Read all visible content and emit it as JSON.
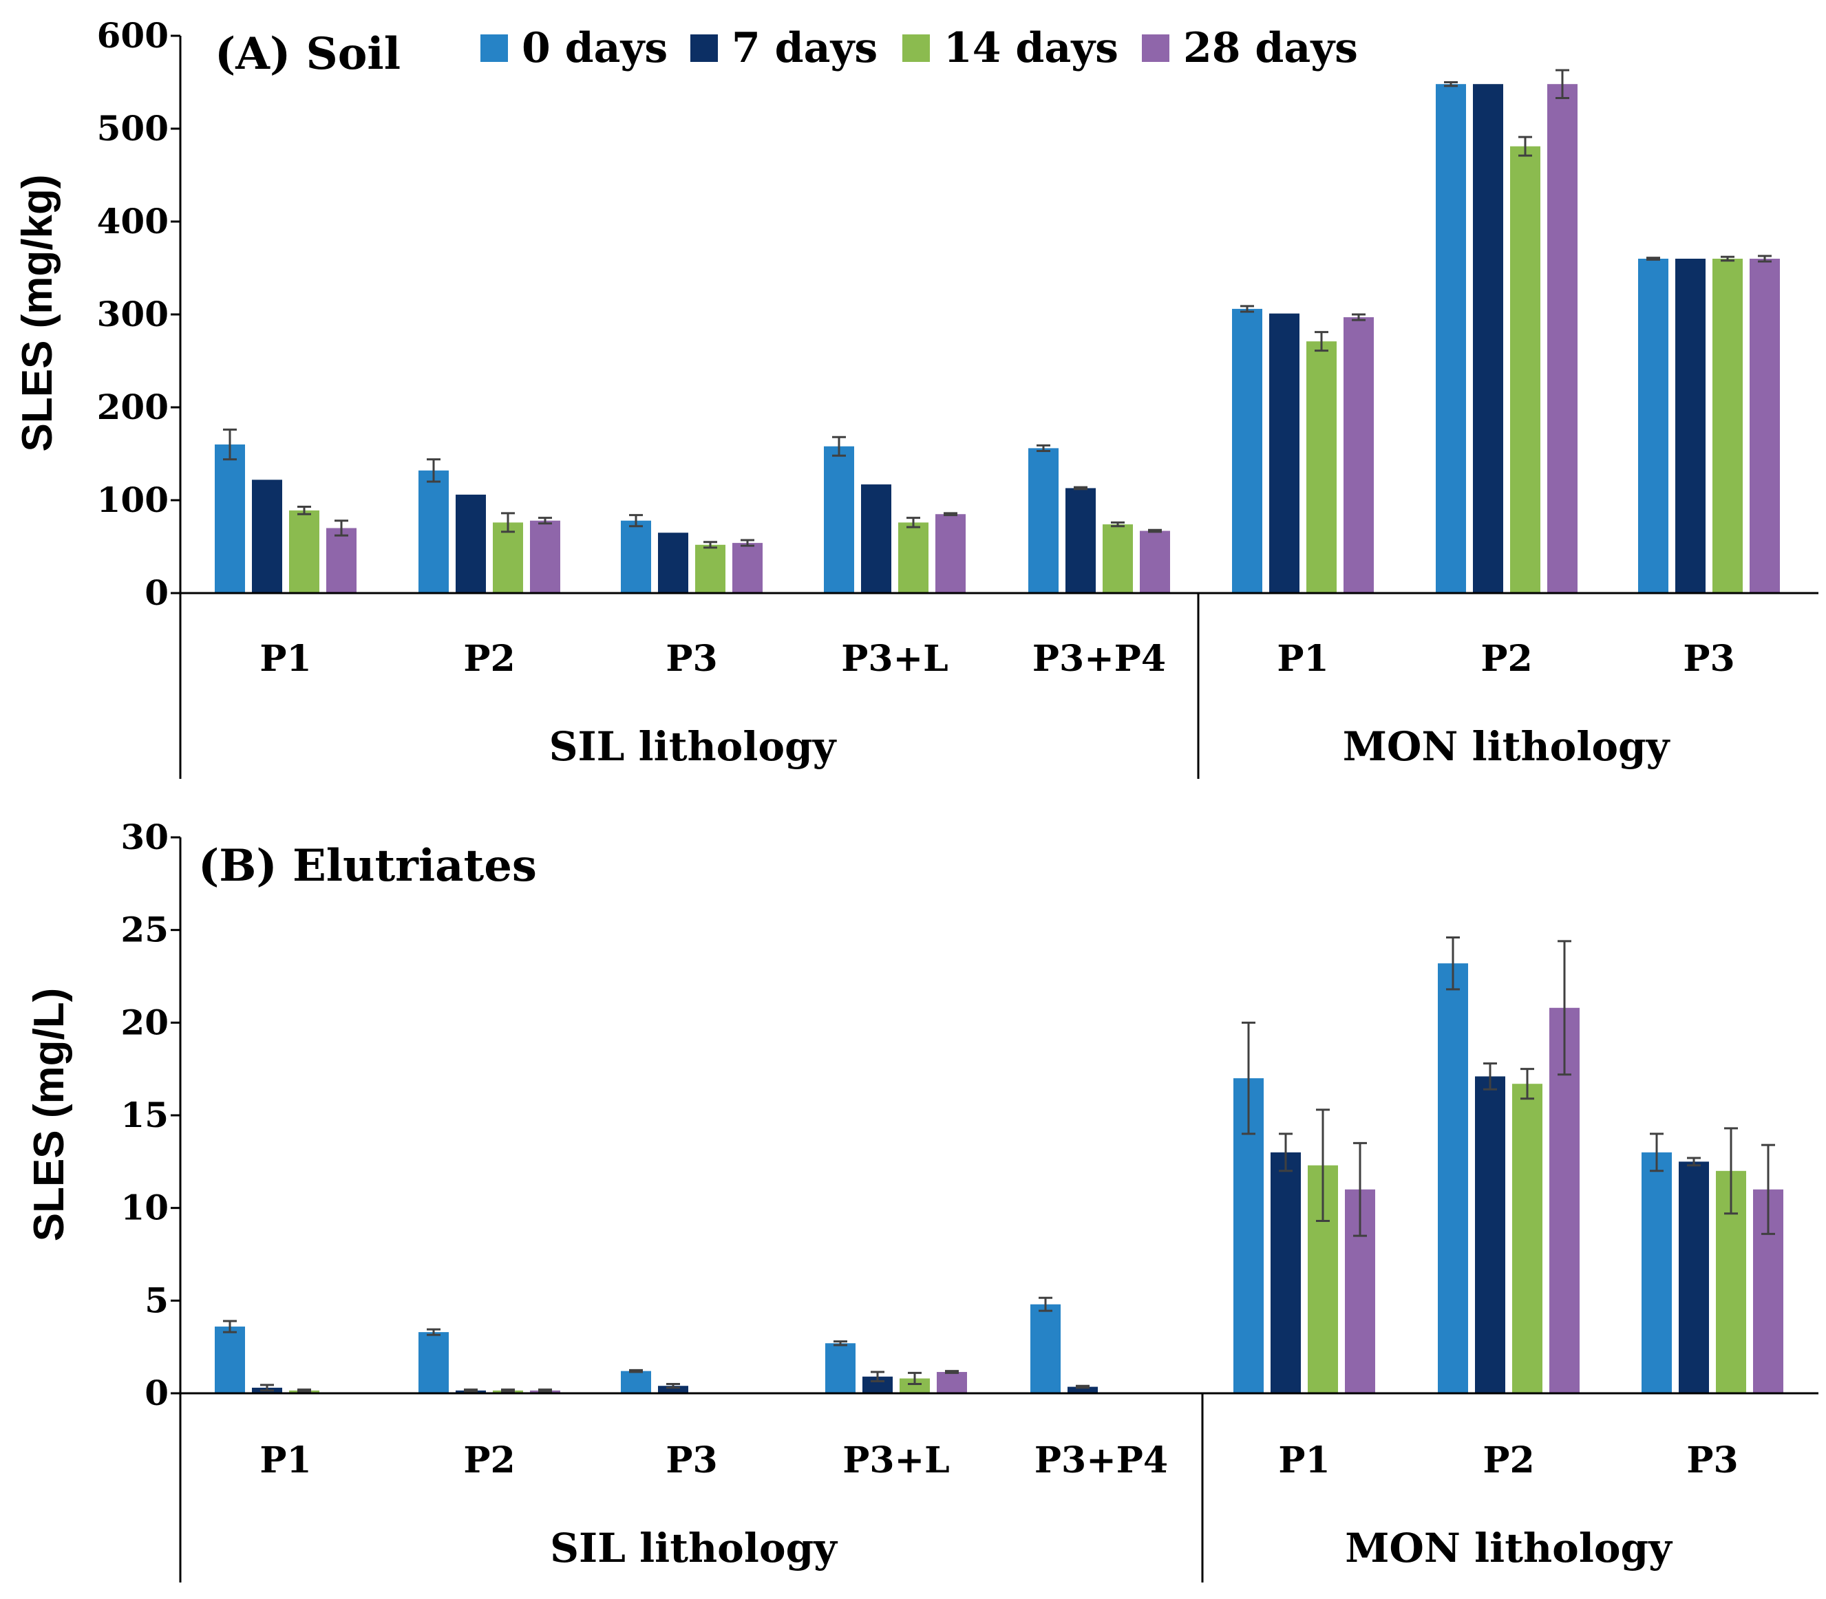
{
  "legend": [
    "0 days",
    "7 days",
    "14 days",
    "28 days"
  ],
  "colors": [
    "#2683c6",
    "#0c2f64",
    "#8bbb4f",
    "#8f66aa"
  ],
  "chart_data": [
    {
      "type": "bar",
      "title": "(A) Soil",
      "ylabel": "SLES (mg/kg)",
      "ylim": [
        0,
        600
      ],
      "yticks": [
        0,
        100,
        200,
        300,
        400,
        500,
        600
      ],
      "categories": [
        "P1",
        "P2",
        "P3",
        "P3+L",
        "P3+P4",
        "P1",
        "P2",
        "P3"
      ],
      "groups": [
        {
          "label": "SIL lithology",
          "from": 0,
          "to": 4
        },
        {
          "label": "MON lithology",
          "from": 5,
          "to": 7
        }
      ],
      "series": [
        {
          "name": "0 days",
          "values": [
            160,
            132,
            78,
            158,
            156,
            306,
            548,
            360
          ],
          "errors": [
            16,
            12,
            6,
            10,
            3,
            3,
            2,
            1
          ]
        },
        {
          "name": "7 days",
          "values": [
            122,
            106,
            65,
            117,
            113,
            301,
            548,
            360
          ],
          "errors": [
            0,
            0,
            0,
            0,
            1,
            0,
            0,
            0
          ]
        },
        {
          "name": "14 days",
          "values": [
            89,
            76,
            52,
            76,
            74,
            271,
            481,
            360
          ],
          "errors": [
            4,
            10,
            3,
            5,
            2,
            10,
            10,
            2
          ]
        },
        {
          "name": "28 days",
          "values": [
            70,
            78,
            54,
            85,
            67,
            297,
            548,
            360
          ],
          "errors": [
            8,
            3,
            3,
            1,
            1,
            3,
            15,
            3
          ]
        }
      ]
    },
    {
      "type": "bar",
      "title": "(B) Elutriates",
      "ylabel": "SLES (mg/L)",
      "ylim": [
        0,
        30
      ],
      "yticks": [
        0,
        5,
        10,
        15,
        20,
        25,
        30
      ],
      "categories": [
        "P1",
        "P2",
        "P3",
        "P3+L",
        "P3+P4",
        "P1",
        "P2",
        "P3"
      ],
      "groups": [
        {
          "label": "SIL lithology",
          "from": 0,
          "to": 4
        },
        {
          "label": "MON lithology",
          "from": 5,
          "to": 7
        }
      ],
      "series": [
        {
          "name": "0 days",
          "values": [
            3.6,
            3.3,
            1.2,
            2.7,
            4.8,
            17.0,
            23.2,
            13.0
          ],
          "errors": [
            0.3,
            0.15,
            0.05,
            0.1,
            0.35,
            3.0,
            1.4,
            1.0
          ]
        },
        {
          "name": "7 days",
          "values": [
            0.3,
            0.15,
            0.4,
            0.9,
            0.35,
            13.0,
            17.1,
            12.5
          ],
          "errors": [
            0.15,
            0.05,
            0.1,
            0.25,
            0.05,
            1.0,
            0.7,
            0.2
          ]
        },
        {
          "name": "14 days",
          "values": [
            0.15,
            0.15,
            0.0,
            0.8,
            0.0,
            12.3,
            16.7,
            12.0
          ],
          "errors": [
            0.05,
            0.05,
            0.0,
            0.3,
            0.0,
            3.0,
            0.8,
            2.3
          ]
        },
        {
          "name": "28 days",
          "values": [
            0.0,
            0.15,
            0.0,
            1.15,
            0.0,
            11.0,
            20.8,
            11.0
          ],
          "errors": [
            0.0,
            0.05,
            0.0,
            0.05,
            0.0,
            2.5,
            3.6,
            2.4
          ]
        }
      ]
    }
  ]
}
